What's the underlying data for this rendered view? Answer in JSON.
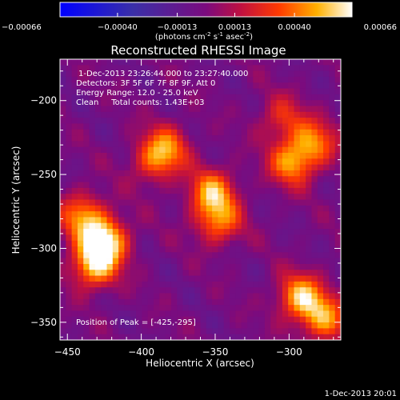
{
  "chart_data": {
    "type": "heatmap",
    "title": "Reconstructed RHESSI Image",
    "xlabel": "Heliocentric X (arcsec)",
    "ylabel": "Heliocentric Y (arcsec)",
    "xlim": [
      -455,
      -265
    ],
    "ylim": [
      -362,
      -172
    ],
    "xticks": [
      -450,
      -400,
      -350,
      -300
    ],
    "yticks": [
      -200,
      -250,
      -300,
      -350
    ],
    "colorbar": {
      "ticks": [
        "-0.00066",
        "-0.00040",
        "-0.00013",
        "0.00013",
        "0.00040",
        "0.00066"
      ],
      "vmin": -0.00066,
      "vmax": 0.00066,
      "label_main": "(photons cm",
      "label_exp1": "-2",
      "label_mid": " s",
      "label_exp2": "-1",
      "label_post": " asec",
      "label_exp3": "-2",
      "label_end": ")"
    },
    "info_lines": [
      "1-Dec-2013 23:26:44.000 to 23:27:40.000",
      "Detectors: 3F 5F 6F 7F 8F 9F, Att 0",
      "Energy Range: 12.0 - 25.0 keV",
      "Clean     Total counts: 1.43E+03"
    ],
    "peak_label": "Position of Peak = [-425,-295]",
    "peak_position": [
      -425,
      -295
    ],
    "sources": [
      {
        "x": -425,
        "y": -295,
        "peak": 0.00066
      },
      {
        "x": -432,
        "y": -312,
        "peak": 0.00055
      },
      {
        "x": -440,
        "y": -278,
        "peak": 0.00045
      },
      {
        "x": -352,
        "y": -262,
        "peak": 0.0005
      },
      {
        "x": -348,
        "y": -282,
        "peak": 0.00042
      },
      {
        "x": -383,
        "y": -232,
        "peak": 0.0004
      },
      {
        "x": -392,
        "y": -242,
        "peak": 0.00028
      },
      {
        "x": -298,
        "y": -242,
        "peak": 0.00048
      },
      {
        "x": -283,
        "y": -228,
        "peak": 0.0004
      },
      {
        "x": -305,
        "y": -212,
        "peak": 0.00028
      },
      {
        "x": -292,
        "y": -333,
        "peak": 0.00056
      },
      {
        "x": -276,
        "y": -348,
        "peak": 0.00045
      }
    ]
  },
  "timestamp": "1-Dec-2013 20:01"
}
